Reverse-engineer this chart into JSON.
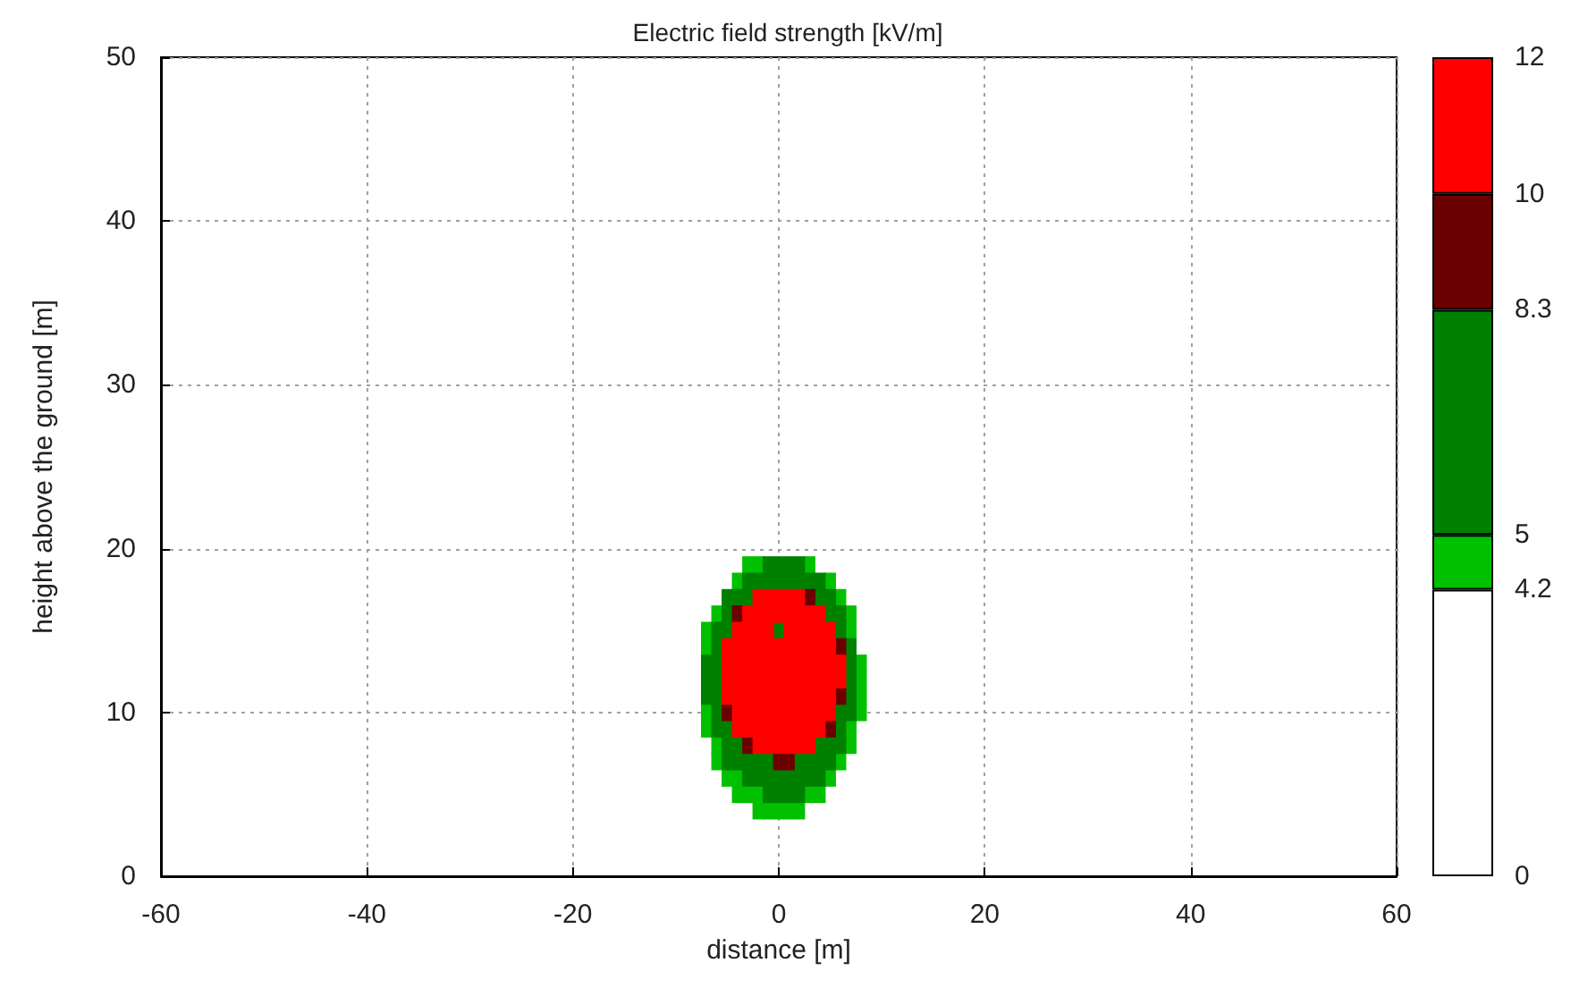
{
  "chart_data": [
    {
      "type": "scatter",
      "title": "Electric field strength [kV/m]",
      "xlabel": "distance [m]",
      "ylabel": "height above the ground [m]",
      "marker": "square",
      "grid": true,
      "xlim": [
        -60,
        60
      ],
      "xticks": [
        -60,
        -40,
        -20,
        0,
        20,
        40,
        60
      ],
      "ylim": [
        0,
        50
      ],
      "yticks": [
        0,
        10,
        20,
        30,
        40,
        50
      ],
      "series": [
        {
          "color": "#00c000",
          "x": [
            -2,
            -1,
            0,
            1,
            2,
            -4,
            -3,
            -2,
            3,
            4,
            -5,
            -4,
            5,
            -6,
            6,
            -6,
            7,
            -7,
            7,
            -7,
            8,
            8,
            8,
            8,
            -7,
            -7,
            7,
            -6,
            7,
            6,
            -4,
            5,
            -3,
            -2,
            3
          ],
          "values": [
            4,
            4,
            4,
            4,
            4,
            5,
            5,
            5,
            5,
            5,
            6,
            6,
            6,
            7,
            7,
            8,
            8,
            9,
            9,
            10,
            10,
            11,
            12,
            13,
            14,
            15,
            15,
            16,
            16,
            17,
            18,
            18,
            19,
            19,
            19
          ]
        },
        {
          "color": "#008000",
          "x": [
            -1,
            0,
            1,
            2,
            -3,
            -2,
            -1,
            0,
            1,
            2,
            3,
            4,
            -5,
            -4,
            -3,
            -2,
            -1,
            2,
            3,
            4,
            5,
            -5,
            -4,
            4,
            5,
            6,
            -6,
            -5,
            6,
            -6,
            6,
            7,
            -7,
            -6,
            7,
            -7,
            -6,
            7,
            -7,
            -6,
            7,
            -6,
            7,
            -6,
            -5,
            0,
            6,
            -5,
            5,
            6,
            -5,
            -4,
            -3,
            4,
            5,
            -3,
            -2,
            -1,
            0,
            1,
            2,
            3,
            4,
            -1,
            0,
            1,
            2
          ],
          "values": [
            5,
            5,
            5,
            5,
            6,
            6,
            6,
            6,
            6,
            6,
            6,
            6,
            7,
            7,
            7,
            7,
            7,
            7,
            7,
            7,
            7,
            8,
            8,
            8,
            8,
            8,
            9,
            9,
            9,
            10,
            10,
            10,
            11,
            11,
            11,
            12,
            12,
            12,
            13,
            13,
            13,
            14,
            14,
            15,
            15,
            15,
            15,
            16,
            16,
            16,
            17,
            17,
            17,
            17,
            17,
            18,
            18,
            18,
            18,
            18,
            18,
            18,
            18,
            19,
            19,
            19,
            19
          ]
        },
        {
          "color": "#6b0000",
          "x": [
            0,
            1,
            -3,
            5,
            -5,
            6,
            6,
            -4,
            3
          ],
          "values": [
            7,
            7,
            8,
            9,
            10,
            11,
            14,
            16,
            17
          ]
        },
        {
          "color": "#ff0000",
          "x": [
            -2,
            -1,
            0,
            1,
            2,
            3,
            -4,
            -3,
            -2,
            -1,
            0,
            1,
            2,
            3,
            4,
            -4,
            -3,
            -2,
            -1,
            0,
            1,
            2,
            3,
            4,
            5,
            -5,
            -4,
            -3,
            -2,
            -1,
            0,
            1,
            2,
            3,
            4,
            5,
            -5,
            -4,
            -3,
            -2,
            -1,
            0,
            1,
            2,
            3,
            4,
            5,
            6,
            -5,
            -4,
            -3,
            -2,
            -1,
            0,
            1,
            2,
            3,
            4,
            5,
            6,
            -5,
            -4,
            -3,
            -2,
            -1,
            0,
            1,
            2,
            3,
            4,
            5,
            -4,
            -3,
            -2,
            -1,
            1,
            2,
            3,
            4,
            5,
            -3,
            -2,
            -1,
            0,
            1,
            2,
            3,
            4,
            -2,
            -1,
            0,
            1,
            2
          ],
          "values": [
            8,
            8,
            8,
            8,
            8,
            8,
            9,
            9,
            9,
            9,
            9,
            9,
            9,
            9,
            9,
            10,
            10,
            10,
            10,
            10,
            10,
            10,
            10,
            10,
            10,
            11,
            11,
            11,
            11,
            11,
            11,
            11,
            11,
            11,
            11,
            11,
            12,
            12,
            12,
            12,
            12,
            12,
            12,
            12,
            12,
            12,
            12,
            12,
            13,
            13,
            13,
            13,
            13,
            13,
            13,
            13,
            13,
            13,
            13,
            13,
            14,
            14,
            14,
            14,
            14,
            14,
            14,
            14,
            14,
            14,
            14,
            15,
            15,
            15,
            15,
            15,
            15,
            15,
            15,
            15,
            16,
            16,
            16,
            16,
            16,
            16,
            16,
            16,
            17,
            17,
            17,
            17,
            17
          ]
        }
      ]
    },
    {
      "type": "bar",
      "stacked": true,
      "categories": [
        null
      ],
      "ylim": [
        0,
        12
      ],
      "yticks": [
        0,
        4.2,
        5,
        8.3,
        10,
        12
      ],
      "series": [
        {
          "color": "#ffffff",
          "values": [
            4.2
          ]
        },
        {
          "color": "#00c000",
          "values": [
            0.8
          ]
        },
        {
          "color": "#008000",
          "values": [
            3.3
          ]
        },
        {
          "color": "#6b0000",
          "values": [
            1.7
          ]
        },
        {
          "color": "#ff0000",
          "values": [
            2
          ]
        }
      ]
    }
  ]
}
